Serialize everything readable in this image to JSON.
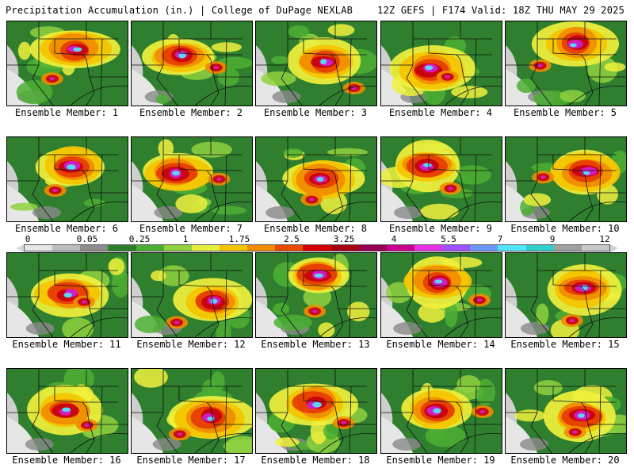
{
  "header": {
    "left": "Precipitation Accumulation (in.) | College of DuPage NEXLAB",
    "right": "12Z GEFS | F174 Valid: 18Z THU MAY 29 2025"
  },
  "panels": [
    {
      "caption": "Ensemble Member: 1"
    },
    {
      "caption": "Ensemble Member: 2"
    },
    {
      "caption": "Ensemble Member: 3"
    },
    {
      "caption": "Ensemble Member: 4"
    },
    {
      "caption": "Ensemble Member: 5"
    },
    {
      "caption": "Ensemble Member: 6"
    },
    {
      "caption": "Ensemble Member: 7"
    },
    {
      "caption": "Ensemble Member: 8"
    },
    {
      "caption": "Ensemble Member: 9"
    },
    {
      "caption": "Ensemble Member: 10"
    },
    {
      "caption": "Ensemble Member: 11"
    },
    {
      "caption": "Ensemble Member: 12"
    },
    {
      "caption": "Ensemble Member: 13"
    },
    {
      "caption": "Ensemble Member: 14"
    },
    {
      "caption": "Ensemble Member: 15"
    },
    {
      "caption": "Ensemble Member: 16"
    },
    {
      "caption": "Ensemble Member: 17"
    },
    {
      "caption": "Ensemble Member: 18"
    },
    {
      "caption": "Ensemble Member: 19"
    },
    {
      "caption": "Ensemble Member: 20"
    }
  ],
  "scale": {
    "labels": [
      "0",
      "0.05",
      "0.25",
      "1",
      "1.75",
      "2.5",
      "3.25",
      "4",
      "5.5",
      "7",
      "9",
      "12"
    ],
    "colors": [
      "#e6e6e6",
      "#bdbdbd",
      "#8c8c8c",
      "#2d7d2d",
      "#4caf32",
      "#8fd13f",
      "#e6f03c",
      "#f5c400",
      "#f08c00",
      "#e64b00",
      "#d20000",
      "#a50014",
      "#960050",
      "#c8008c",
      "#e632e6",
      "#a050ff",
      "#6e96ff",
      "#50e6ff",
      "#30d0c8",
      "#a0a0a0",
      "#c8c8c8"
    ]
  }
}
